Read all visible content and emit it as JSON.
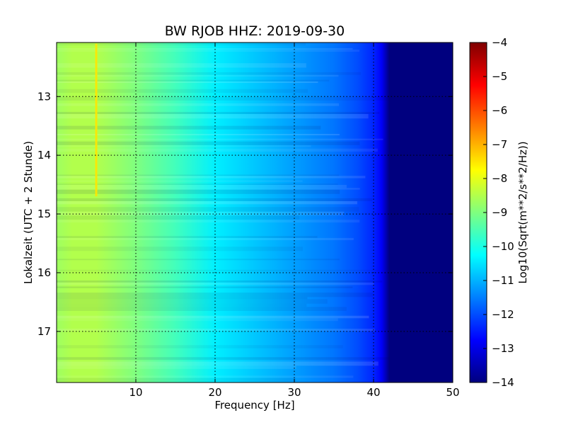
{
  "chart_data": {
    "type": "heatmap",
    "title": "BW RJOB HHZ: 2019-09-30",
    "xlabel": "Frequency [Hz]",
    "ylabel": "Lokalzeit (UTC + 2 Stunde)",
    "xlim": [
      0,
      50
    ],
    "ylim": [
      17.87,
      12.08
    ],
    "x_ticks": [
      10,
      20,
      30,
      40,
      50
    ],
    "y_ticks": [
      13,
      14,
      15,
      16,
      17
    ],
    "grid": true,
    "colormap": "jet",
    "colorbar": {
      "label": "Log10(Sqrt(m**2/s**2/Hz))",
      "range": [
        -14,
        -4
      ],
      "ticks": [
        -4,
        -5,
        -6,
        -7,
        -8,
        -9,
        -10,
        -11,
        -12,
        -13,
        -14
      ]
    },
    "colors": {
      "jet": [
        "#00007f",
        "#0000ff",
        "#007fff",
        "#00ffff",
        "#7fff7f",
        "#ffff00",
        "#ff7f00",
        "#ff0000",
        "#7f0000"
      ]
    },
    "spectrum_profile": [
      {
        "freq": 0,
        "log_psd": -8.7
      },
      {
        "freq": 2,
        "log_psd": -8.5
      },
      {
        "freq": 5,
        "log_psd": -8.5
      },
      {
        "freq": 10,
        "log_psd": -9.0
      },
      {
        "freq": 15,
        "log_psd": -9.6
      },
      {
        "freq": 20,
        "log_psd": -10.4
      },
      {
        "freq": 25,
        "log_psd": -10.8
      },
      {
        "freq": 30,
        "log_psd": -11.2
      },
      {
        "freq": 35,
        "log_psd": -11.6
      },
      {
        "freq": 38,
        "log_psd": -12.0
      },
      {
        "freq": 40,
        "log_psd": -12.4
      },
      {
        "freq": 41,
        "log_psd": -12.8
      },
      {
        "freq": 42,
        "log_psd": -14.0
      },
      {
        "freq": 50,
        "log_psd": -14.0
      }
    ],
    "persistent_line": {
      "freq": 5,
      "from_time": 12.1,
      "to_time": 14.7,
      "log_psd": -7.5
    }
  }
}
